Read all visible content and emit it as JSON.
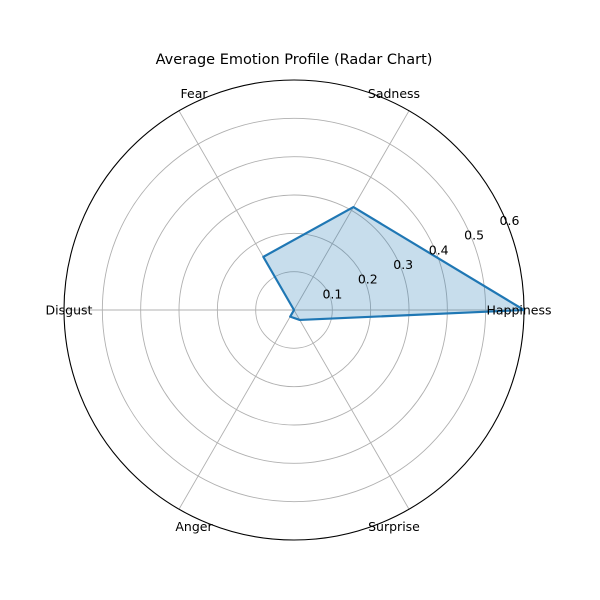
{
  "chart_data": {
    "type": "radar",
    "title": "Average Emotion Profile (Radar Chart)",
    "categories": [
      "Happiness",
      "Sadness",
      "Fear",
      "Disgust",
      "Anger",
      "Surprise"
    ],
    "series": [
      {
        "values": [
          0.6,
          0.31,
          0.16,
          0.0,
          0.02,
          0.03
        ]
      }
    ],
    "rlim": [
      0,
      0.6
    ],
    "rticks": [
      "0.1",
      "0.2",
      "0.3",
      "0.4",
      "0.5",
      "0.6"
    ],
    "grid": true,
    "colors": {
      "line": "#1f77b4",
      "fill": "#1f77b4",
      "grid": "#b0b0b0",
      "frame": "#000000"
    }
  }
}
